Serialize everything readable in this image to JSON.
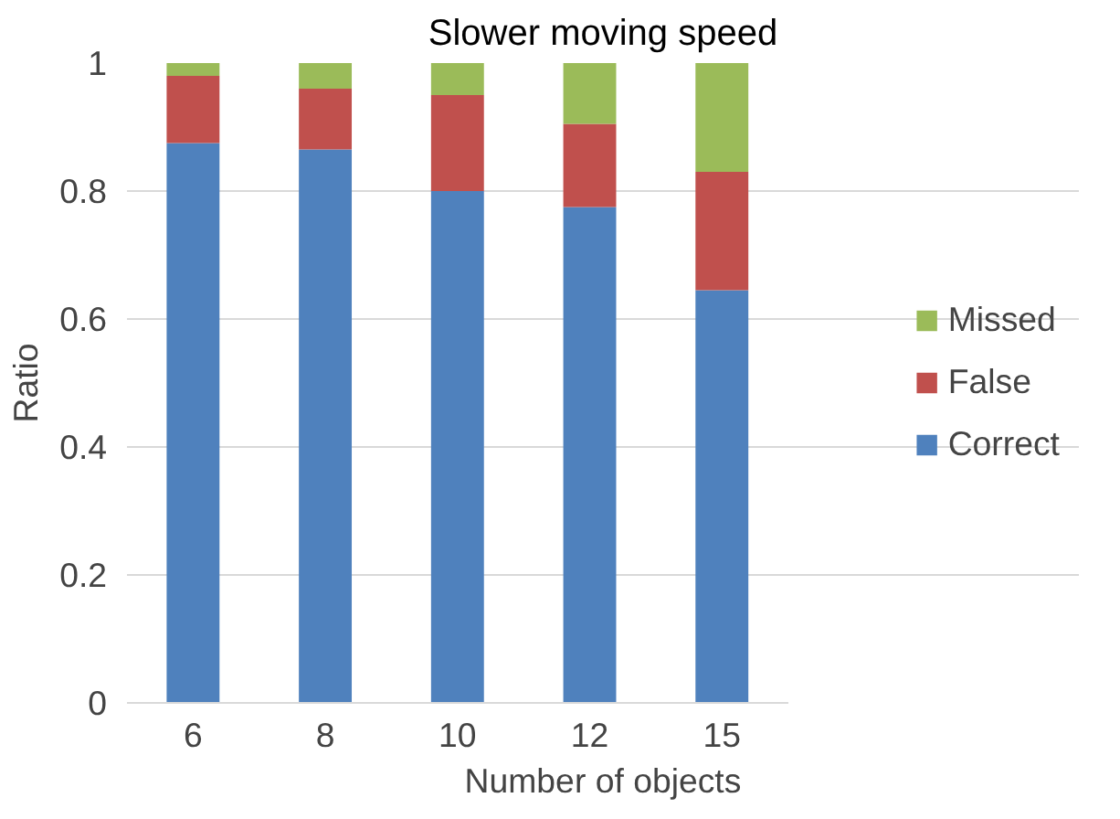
{
  "chart_data": {
    "type": "bar",
    "title": "Slower moving speed",
    "xlabel": "Number of objects",
    "ylabel": "Ratio",
    "categories": [
      "6",
      "8",
      "10",
      "12",
      "15"
    ],
    "stacked": true,
    "series": [
      {
        "name": "Correct",
        "color": "#4f81bd",
        "values": [
          0.875,
          0.865,
          0.8,
          0.775,
          0.645
        ]
      },
      {
        "name": "False",
        "color": "#c0504d",
        "values": [
          0.105,
          0.095,
          0.15,
          0.13,
          0.185
        ]
      },
      {
        "name": "Missed",
        "color": "#9bbb59",
        "values": [
          0.02,
          0.04,
          0.05,
          0.095,
          0.17
        ]
      }
    ],
    "ylim": [
      0,
      1
    ],
    "yticks": [
      0,
      0.2,
      0.4,
      0.6,
      0.8,
      1
    ],
    "grid": "y",
    "legend": "right"
  }
}
